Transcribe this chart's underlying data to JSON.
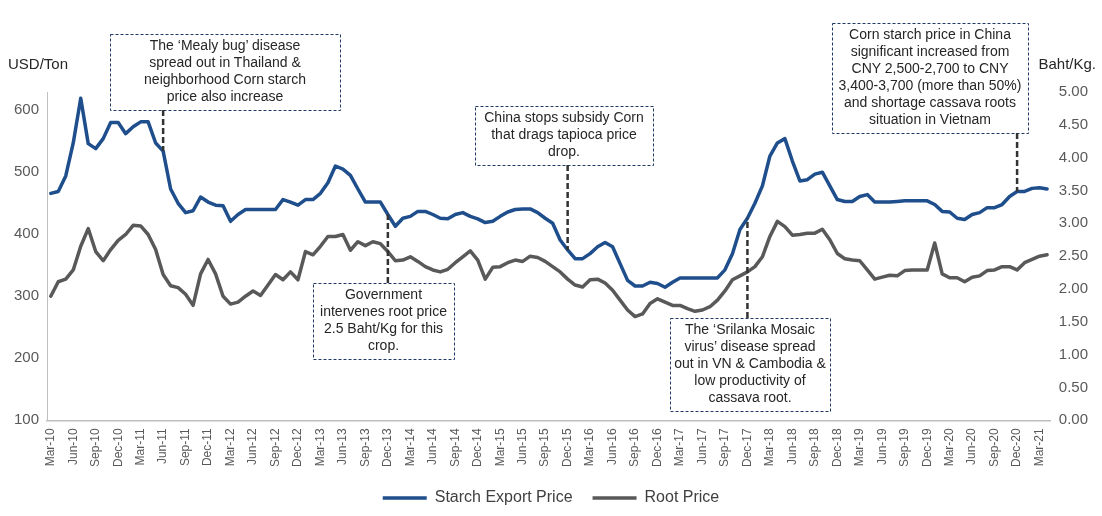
{
  "chart_data": {
    "type": "line",
    "ylabel": "USD/Ton",
    "y2label": "Baht/Kg.",
    "categories": [
      "Mar-10",
      null,
      null,
      "Jun-10",
      null,
      null,
      "Sep-10",
      null,
      null,
      "Dec-10",
      null,
      null,
      "Mar-11",
      null,
      null,
      "Jun-11",
      null,
      null,
      "Sep-11",
      null,
      null,
      "Dec-11",
      null,
      null,
      "Mar-12",
      null,
      null,
      "Jun-12",
      null,
      null,
      "Sep-12",
      null,
      null,
      "Dec-12",
      null,
      null,
      "Mar-13",
      null,
      null,
      "Jun-13",
      null,
      null,
      "Sep-13",
      null,
      null,
      "Dec-13",
      null,
      null,
      "Mar-14",
      null,
      null,
      "Jun-14",
      null,
      null,
      "Sep-14",
      null,
      null,
      "Dec-14",
      null,
      null,
      "Mar-15",
      null,
      null,
      "Jun-15",
      null,
      null,
      "Sep-15",
      null,
      null,
      "Dec-15",
      null,
      null,
      "Mar-16",
      null,
      null,
      "Jun-16",
      null,
      null,
      "Sep-16",
      null,
      null,
      "Dec-16",
      null,
      null,
      "Mar-17",
      null,
      null,
      "Jun-17",
      null,
      null,
      "Sep-17",
      null,
      null,
      "Dec-17",
      null,
      null,
      "Mar-18",
      null,
      null,
      "Jun-18",
      null,
      null,
      "Sep-18",
      null,
      null,
      "Dec-18",
      null,
      null,
      "Mar-19",
      null,
      null,
      "Jun-19",
      null,
      null,
      "Sep-19",
      null,
      null,
      "Dec-19",
      null,
      null,
      "Mar-20",
      null,
      null,
      "Jun-20",
      null,
      null,
      "Sep-20",
      null,
      null,
      "Dec-20",
      null,
      null,
      "Mar-21",
      null
    ],
    "series": [
      {
        "name": "Starch Export Price",
        "color": "#1f4e8c",
        "values": [
          465,
          468,
          493,
          546,
          618,
          545,
          537,
          553,
          579,
          579,
          561,
          572,
          580,
          580,
          546,
          533,
          472,
          449,
          434,
          437,
          459,
          451,
          446,
          445,
          420,
          431,
          439,
          439,
          439,
          439,
          439,
          455,
          451,
          446,
          455,
          455,
          465,
          482,
          509,
          504,
          494,
          472,
          451,
          451,
          451,
          431,
          412,
          425,
          428,
          436,
          436,
          431,
          425,
          424,
          431,
          434,
          428,
          424,
          418,
          420,
          428,
          435,
          439,
          440,
          440,
          434,
          425,
          417,
          390,
          374,
          360,
          360,
          368,
          379,
          386,
          379,
          352,
          325,
          316,
          316,
          322,
          320,
          314,
          322,
          329,
          329,
          329,
          329,
          329,
          329,
          342,
          368,
          407,
          425,
          449,
          477,
          525,
          546,
          553,
          517,
          485,
          487,
          496,
          499,
          477,
          455,
          452,
          452,
          460,
          463,
          451,
          451,
          451,
          452,
          453,
          453,
          453,
          453,
          447,
          436,
          435,
          425,
          423,
          431,
          434,
          442,
          442,
          447,
          460,
          468,
          468,
          473,
          474,
          472
        ]
      },
      {
        "name": "Root Price",
        "color": "#595959",
        "axis": "y2",
        "values": [
          1.89,
          2.11,
          2.15,
          2.29,
          2.65,
          2.92,
          2.57,
          2.43,
          2.6,
          2.74,
          2.83,
          2.97,
          2.96,
          2.83,
          2.6,
          2.22,
          2.05,
          2.02,
          1.92,
          1.75,
          2.23,
          2.45,
          2.23,
          1.89,
          1.77,
          1.8,
          1.89,
          1.97,
          1.9,
          2.06,
          2.22,
          2.14,
          2.26,
          2.14,
          2.57,
          2.52,
          2.65,
          2.8,
          2.8,
          2.83,
          2.59,
          2.72,
          2.66,
          2.72,
          2.69,
          2.57,
          2.43,
          2.44,
          2.49,
          2.42,
          2.34,
          2.29,
          2.26,
          2.3,
          2.4,
          2.49,
          2.58,
          2.44,
          2.15,
          2.33,
          2.34,
          2.4,
          2.44,
          2.42,
          2.5,
          2.48,
          2.42,
          2.34,
          2.26,
          2.15,
          2.06,
          2.03,
          2.14,
          2.15,
          2.09,
          1.98,
          1.83,
          1.68,
          1.58,
          1.62,
          1.78,
          1.85,
          1.8,
          1.75,
          1.75,
          1.7,
          1.66,
          1.68,
          1.73,
          1.83,
          1.97,
          2.14,
          2.2,
          2.26,
          2.34,
          2.49,
          2.8,
          3.03,
          2.95,
          2.82,
          2.83,
          2.85,
          2.85,
          2.91,
          2.75,
          2.54,
          2.46,
          2.44,
          2.43,
          2.29,
          2.15,
          2.18,
          2.21,
          2.2,
          2.28,
          2.29,
          2.29,
          2.29,
          2.7,
          2.23,
          2.17,
          2.17,
          2.11,
          2.18,
          2.2,
          2.28,
          2.29,
          2.34,
          2.34,
          2.29,
          2.4,
          2.45,
          2.5,
          2.52
        ]
      }
    ],
    "ylim": [
      100,
      628
    ],
    "yticks": [
      100,
      200,
      300,
      400,
      500,
      600
    ],
    "y2lim": [
      0,
      5
    ],
    "y2ticks": [
      {
        "value": 0,
        "label": "0.00"
      },
      {
        "value": 0.5,
        "label": "0.50"
      },
      {
        "value": 1,
        "label": "1.00"
      },
      {
        "value": 1.5,
        "label": "1.50"
      },
      {
        "value": 2,
        "label": "2.00"
      },
      {
        "value": 2.5,
        "label": "2.50"
      },
      {
        "value": 3,
        "label": "3.00"
      },
      {
        "value": 3.5,
        "label": "3.50"
      },
      {
        "value": 4,
        "label": "4.00"
      },
      {
        "value": 4.5,
        "label": "4.50"
      },
      {
        "value": 5,
        "label": "5.00"
      }
    ],
    "grid": false,
    "legend": "bottom",
    "marker": "none",
    "line_style": "solid",
    "annotations": [
      {
        "text": "The ‘Mealy bug’ disease spread out in Thailand & neighborhood Corn starch price also increase",
        "x": "Jun-11",
        "y": 533
      },
      {
        "text": "Government intervenes root price 2.5 Baht/Kg for this crop.",
        "x": "Dec-13",
        "y": 431
      },
      {
        "text": "China stops subsidy Corn that drags tapioca price drop.",
        "x": "Dec-15",
        "y": 374
      },
      {
        "text": "The ‘Srilanka Mosaic virus’ disease spread out in VN & Cambodia & low productivity of cassava root.",
        "x": "Dec-17",
        "y": 425
      },
      {
        "text": "Corn starch price in China significant increased from CNY 2,500-2,700 to CNY 3,400-3,700 (more than 50%) and shortage cassava roots situation in Vietnam",
        "x": "Dec-20",
        "y": 468
      }
    ]
  }
}
